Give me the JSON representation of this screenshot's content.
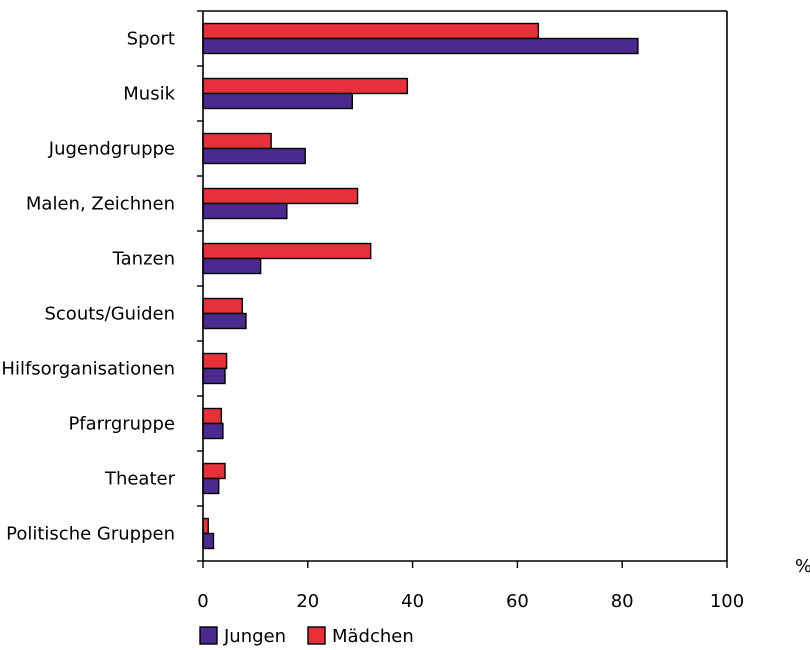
{
  "chart_data": {
    "type": "bar",
    "orientation": "horizontal",
    "categories": [
      "Sport",
      "Musik",
      "Jugendgruppe",
      "Malen, Zeichnen",
      "Tanzen",
      "Scouts/Guiden",
      "Hilfsorganisationen",
      "Pfarrgruppe",
      "Theater",
      "Politische Gruppen"
    ],
    "series": [
      {
        "name": "Mädchen",
        "color": "#e8303a",
        "values": [
          64,
          39,
          13,
          29.5,
          32,
          7.5,
          4.5,
          3.5,
          4.2,
          1
        ]
      },
      {
        "name": "Jungen",
        "color": "#4b2a8f",
        "values": [
          83,
          28.5,
          19.5,
          16,
          11,
          8.2,
          4.2,
          3.8,
          3,
          2
        ]
      }
    ],
    "xlim": [
      0,
      100
    ],
    "xticks": [
      "0",
      "20",
      "40",
      "60",
      "80",
      "100"
    ],
    "xunit": "%",
    "legend_placement": "bottom-left",
    "legend_order": [
      "Jungen",
      "Mädchen"
    ],
    "grid": false
  }
}
